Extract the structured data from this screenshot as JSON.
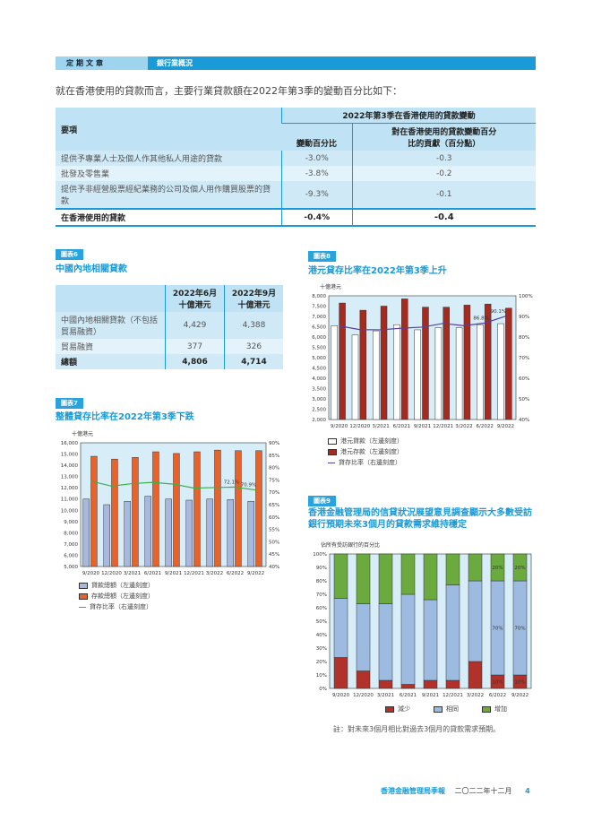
{
  "header": {
    "section": "定期文章",
    "title": "銀行業概況"
  },
  "intro": "就在香港使用的貸款而言，主要行業貸款額在2022年第3季的變動百分比如下：",
  "table1": {
    "col_item": "要項",
    "group_header": "2022年第3季在香港使用的貸款變動",
    "col_pct": "變動百分比",
    "col_contrib": "對在香港使用的貸款變動百分比的貢獻（百分點）",
    "rows": [
      {
        "item": "提供予專業人士及個人作其他私人用途的貸款",
        "pct": "-3.0%",
        "contrib": "-0.3"
      },
      {
        "item": "批發及零售業",
        "pct": "-3.8%",
        "contrib": "-0.2"
      },
      {
        "item": "提供予非經營股票經紀業務的公司及個人用作購買股票的貸款",
        "pct": "-9.3%",
        "contrib": "-0.1"
      }
    ],
    "total": {
      "item": "在香港使用的貸款",
      "pct": "-0.4%",
      "contrib": "-0.4"
    }
  },
  "chart6": {
    "tag": "圖表6",
    "title": "中國內地相關貸款",
    "col1": "2022年6月",
    "col2": "2022年9月",
    "unit": "十億港元",
    "rows": [
      {
        "label": "中國內地相關貸款（不包括貿易融資）",
        "v1": "4,429",
        "v2": "4,388"
      },
      {
        "label": "貿易融資",
        "v1": "377",
        "v2": "326"
      }
    ],
    "total": {
      "label": "總額",
      "v1": "4,806",
      "v2": "4,714"
    }
  },
  "chart_data": [
    {
      "id": "chart7",
      "tag": "圖表7",
      "title": "整體貸存比率在2022年第3季下跌",
      "type": "bar+line",
      "ylabel": "十億港元",
      "ylim": [
        5000,
        16000
      ],
      "y2lim": [
        40,
        90
      ],
      "categories": [
        "9/2020",
        "12/2020",
        "3/2021",
        "6/2021",
        "9/2021",
        "12/2021",
        "3/2022",
        "6/2022",
        "9/2022"
      ],
      "series": [
        {
          "name": "貸款總額（左邊刻度）",
          "axis": "left",
          "type": "bar",
          "color": "#a9b8df",
          "values": [
            11000,
            10500,
            10800,
            11250,
            11000,
            10900,
            11000,
            10950,
            10800
          ]
        },
        {
          "name": "存款總額（左邊刻度）",
          "axis": "left",
          "type": "bar",
          "color": "#e8622a",
          "values": [
            14800,
            14550,
            14700,
            15200,
            15050,
            15200,
            15350,
            15300,
            15300
          ]
        },
        {
          "name": "貸存比率（右邊刻度）",
          "axis": "right",
          "type": "line",
          "color": "#3fae49",
          "values": [
            74.5,
            72.5,
            73.5,
            74.0,
            73.3,
            71.7,
            71.9,
            72.1,
            70.9
          ]
        }
      ],
      "annotations": [
        "72.1%",
        "70.9%"
      ]
    },
    {
      "id": "chart8",
      "tag": "圖表8",
      "title": "港元貸存比率在2022年第3季上升",
      "type": "bar+line",
      "ylabel": "十億港元",
      "ylim": [
        2000,
        8000
      ],
      "y2lim": [
        40,
        100
      ],
      "categories": [
        "9/2020",
        "12/2020",
        "3/2021",
        "6/2021",
        "9/2021",
        "12/2021",
        "3/2022",
        "6/2022",
        "9/2022"
      ],
      "series": [
        {
          "name": "港元貸款（左邊刻度）",
          "axis": "left",
          "type": "bar",
          "color": "#ffffff",
          "values": [
            6550,
            6100,
            6300,
            6600,
            6350,
            6450,
            6450,
            6600,
            6650
          ]
        },
        {
          "name": "港元存款（左邊刻度）",
          "axis": "left",
          "type": "bar",
          "color": "#a52a1f",
          "values": [
            7650,
            7300,
            7500,
            7850,
            7450,
            7450,
            7550,
            7600,
            7400
          ]
        },
        {
          "name": "貸存比率（右邊刻度）",
          "axis": "right",
          "type": "line",
          "color": "#5b3fa0",
          "values": [
            85.4,
            83.6,
            83.5,
            84.3,
            84.8,
            86.6,
            85.5,
            86.8,
            90.1
          ]
        }
      ],
      "annotations": [
        "86.8%",
        "90.1%"
      ]
    },
    {
      "id": "chart9",
      "tag": "圖表9",
      "title": "香港金融管理局的信貸狀況展望意見調查顯示大多數受訪銀行預期未來3個月的貸款需求維持穩定",
      "type": "stacked-bar",
      "ylabel": "佔所有受訪銀行的百分比",
      "ylim": [
        0,
        100
      ],
      "categories": [
        "9/2020",
        "12/2020",
        "3/2021",
        "6/2021",
        "9/2021",
        "12/2021",
        "3/2022",
        "6/2022",
        "9/2022"
      ],
      "series": [
        {
          "name": "減少",
          "color": "#b0322a",
          "values": [
            23,
            13,
            6,
            3,
            6,
            6,
            20,
            10,
            10
          ]
        },
        {
          "name": "相同",
          "color": "#9dbbe0",
          "values": [
            44,
            50,
            57,
            67,
            60,
            71,
            60,
            70,
            70
          ]
        },
        {
          "name": "增加",
          "color": "#6aaa3f",
          "values": [
            33,
            37,
            37,
            30,
            34,
            23,
            20,
            20,
            20
          ]
        }
      ],
      "annotations": [
        "20%",
        "20%",
        "70%",
        "70%",
        "10%",
        "10%"
      ],
      "note": "註：對未來3個月相比對過去3個月的貸款需求預期。"
    }
  ],
  "footer": {
    "publication": "香港金融管理局季報",
    "date": "二〇二二年十二月",
    "page": "4"
  },
  "colors": {
    "accent": "#1a9ad6",
    "plot_bg": "#d7eef9"
  }
}
